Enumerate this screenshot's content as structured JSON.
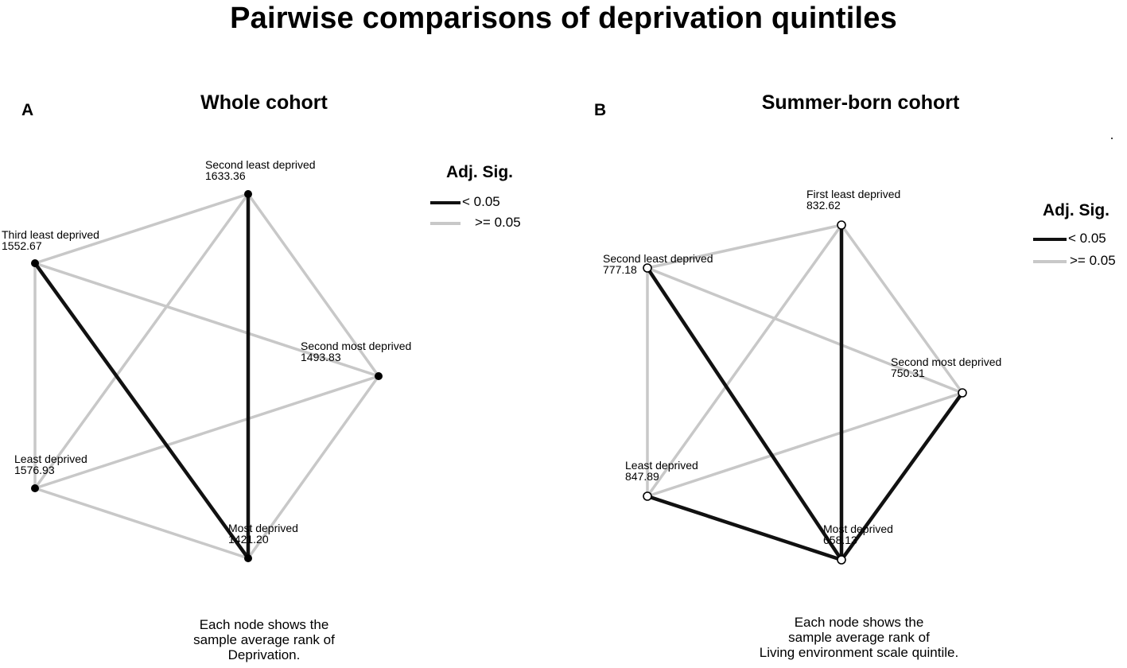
{
  "title": "Pairwise comparisons of deprivation quintiles",
  "colors": {
    "significant": "#111111",
    "not_significant": "#c8c8c8"
  },
  "legend": {
    "title": "Adj. Sig.",
    "sig_label": "< 0.05",
    "nonsig_label": ">= 0.05"
  },
  "panels": [
    {
      "letter": "A",
      "title": "Whole cohort",
      "node_style": "filled",
      "caption": [
        "Each node shows the",
        "sample average rank of",
        "Deprivation."
      ],
      "nodes": [
        {
          "name": "Second least deprived",
          "rank": "1633.36"
        },
        {
          "name": "Third least deprived",
          "rank": "1552.67"
        },
        {
          "name": "Second most deprived",
          "rank": "1493.83"
        },
        {
          "name": "Least deprived",
          "rank": "1576.93"
        },
        {
          "name": "Most deprived",
          "rank": "1421.20"
        }
      ],
      "edges": [
        {
          "from": 0,
          "to": 4,
          "significant": true
        },
        {
          "from": 1,
          "to": 4,
          "significant": true
        },
        {
          "from": 0,
          "to": 1,
          "significant": false
        },
        {
          "from": 0,
          "to": 2,
          "significant": false
        },
        {
          "from": 0,
          "to": 3,
          "significant": false
        },
        {
          "from": 1,
          "to": 2,
          "significant": false
        },
        {
          "from": 1,
          "to": 3,
          "significant": false
        },
        {
          "from": 3,
          "to": 2,
          "significant": false
        },
        {
          "from": 3,
          "to": 4,
          "significant": false
        },
        {
          "from": 2,
          "to": 4,
          "significant": false
        }
      ]
    },
    {
      "letter": "B",
      "title": "Summer-born cohort",
      "node_style": "hollow",
      "caption": [
        "Each node shows the",
        "sample average rank of",
        "Living environment scale quintile."
      ],
      "nodes": [
        {
          "name": "First least deprived",
          "rank": "832.62"
        },
        {
          "name": "Second least deprived",
          "rank": "777.18"
        },
        {
          "name": "Second most deprived",
          "rank": "750.31"
        },
        {
          "name": "Least deprived",
          "rank": "847.89"
        },
        {
          "name": "Most deprived",
          "rank": "658.13"
        }
      ],
      "edges": [
        {
          "from": 0,
          "to": 4,
          "significant": true
        },
        {
          "from": 1,
          "to": 4,
          "significant": true
        },
        {
          "from": 2,
          "to": 4,
          "significant": true
        },
        {
          "from": 3,
          "to": 4,
          "significant": true
        },
        {
          "from": 0,
          "to": 1,
          "significant": false
        },
        {
          "from": 0,
          "to": 2,
          "significant": false
        },
        {
          "from": 0,
          "to": 3,
          "significant": false
        },
        {
          "from": 1,
          "to": 2,
          "significant": false
        },
        {
          "from": 1,
          "to": 3,
          "significant": false
        },
        {
          "from": 3,
          "to": 2,
          "significant": false
        }
      ]
    }
  ]
}
